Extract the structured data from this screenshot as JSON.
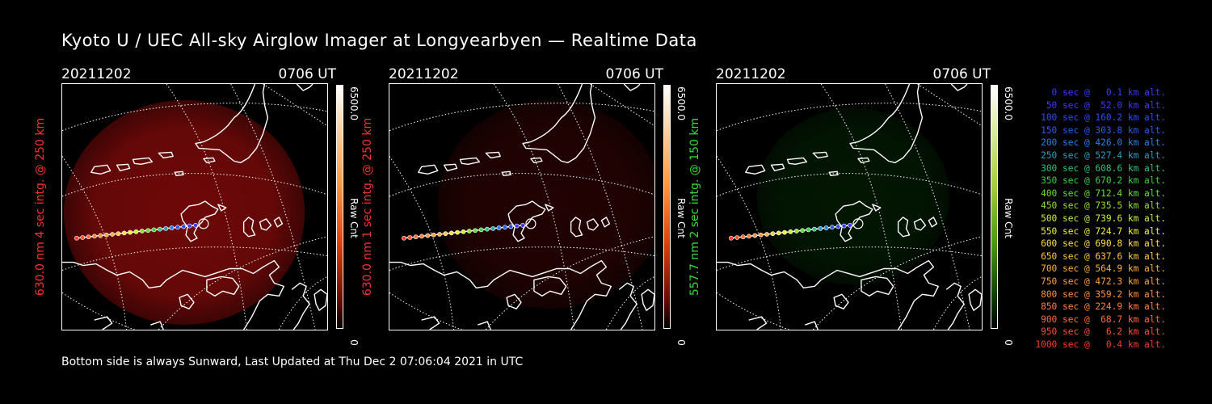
{
  "title": "Kyoto U / UEC All-sky Airglow Imager at Longyearbyen — Realtime Data",
  "footer": "Bottom side is always Sunward, Last Updated at Thu Dec  2 07:06:04 2021 in UTC",
  "colors": {
    "red_channel": "#ff2a2a",
    "green_channel": "#33dd33",
    "background": "#000000"
  },
  "panels": [
    {
      "date": "20211202",
      "time": "0706 UT",
      "ylabel": "630.0 nm 4 sec intg. @ 250 km",
      "label_color": "#ff3030",
      "cbar_max": "6500.0",
      "cbar_unit": "Raw Cnt",
      "cbar_min": "0",
      "cbar_gradient": "linear-gradient(to bottom,#ffffff 0%,#ffd8b0 15%,#ff9a40 40%,#e0400a 65%,#6a0a00 88%,#000000 100%)",
      "glow": "#9a0c0c",
      "glow_opacity": 0.72
    },
    {
      "date": "20211202",
      "time": "0706 UT",
      "ylabel": "630.0 nm 1 sec intg. @ 250 km",
      "label_color": "#ff3030",
      "cbar_max": "6500.0",
      "cbar_unit": "Raw Cnt",
      "cbar_min": "0",
      "cbar_gradient": "linear-gradient(to bottom,#ffffff 0%,#ffd8b0 15%,#ff9a40 40%,#e0400a 65%,#6a0a00 88%,#000000 100%)",
      "glow": "#7a0808",
      "glow_opacity": 0.28
    },
    {
      "date": "20211202",
      "time": "0706 UT",
      "ylabel": "557.7 nm 2 sec intg. @ 150 km",
      "label_color": "#33dd33",
      "cbar_max": "6500.0",
      "cbar_unit": "Raw Cnt",
      "cbar_min": "0",
      "cbar_gradient": "linear-gradient(to bottom,#ffffff 0%,#e0f0b0 15%,#a8d040 40%,#4a9a10 65%,#0a3a00 88%,#000000 100%)",
      "glow": "#0a5a0a",
      "glow_opacity": 0.25
    }
  ],
  "legend": [
    {
      "text": "0 sec @   0.1 km alt.",
      "color": "#3a3aff"
    },
    {
      "text": "50 sec @  52.0 km alt.",
      "color": "#3a3aff"
    },
    {
      "text": "100 sec @ 160.2 km alt.",
      "color": "#2a4cff"
    },
    {
      "text": "150 sec @ 303.8 km alt.",
      "color": "#2a5cf0"
    },
    {
      "text": "200 sec @ 426.0 km alt.",
      "color": "#2a80e8"
    },
    {
      "text": "250 sec @ 527.4 km alt.",
      "color": "#2aa0c0"
    },
    {
      "text": "300 sec @ 608.6 km alt.",
      "color": "#30c080"
    },
    {
      "text": "350 sec @ 670.2 km alt.",
      "color": "#38d040"
    },
    {
      "text": "400 sec @ 712.4 km alt.",
      "color": "#60e030"
    },
    {
      "text": "450 sec @ 735.5 km alt.",
      "color": "#90e030"
    },
    {
      "text": "500 sec @ 739.6 km alt.",
      "color": "#c8f040"
    },
    {
      "text": "550 sec @ 724.7 km alt.",
      "color": "#f0f040"
    },
    {
      "text": "600 sec @ 690.8 km alt.",
      "color": "#ffe040"
    },
    {
      "text": "650 sec @ 637.6 km alt.",
      "color": "#ffc840"
    },
    {
      "text": "700 sec @ 564.9 km alt.",
      "color": "#ffb040"
    },
    {
      "text": "750 sec @ 472.3 km alt.",
      "color": "#ffa040"
    },
    {
      "text": "800 sec @ 359.2 km alt.",
      "color": "#ff9040"
    },
    {
      "text": "850 sec @ 224.9 km alt.",
      "color": "#ff8040"
    },
    {
      "text": "900 sec @  68.7 km alt.",
      "color": "#ff6a3a"
    },
    {
      "text": "950 sec @   6.2 km alt.",
      "color": "#ff5030"
    },
    {
      "text": "1000 sec @   0.4 km alt.",
      "color": "#ff3a2a"
    }
  ]
}
